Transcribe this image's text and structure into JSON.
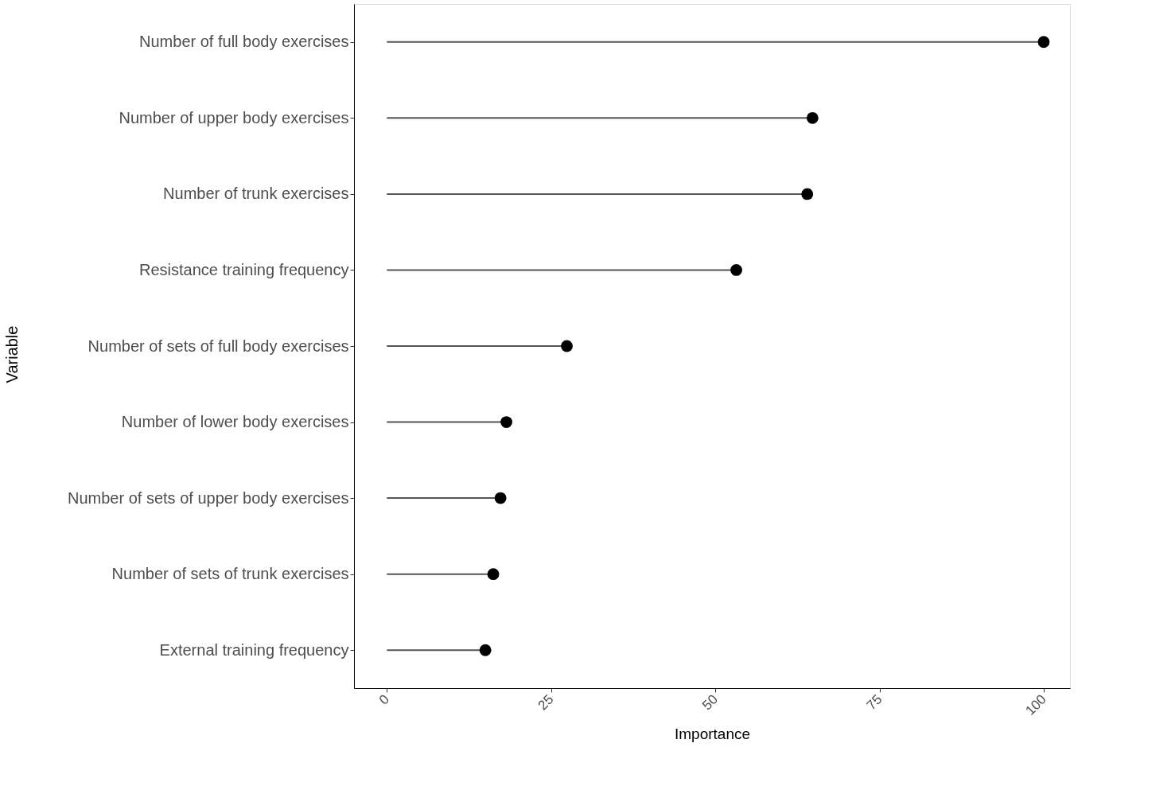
{
  "chart_data": {
    "type": "lollipop",
    "orientation": "horizontal",
    "xlabel": "Importance",
    "ylabel": "Variable",
    "categories": [
      "Number of full body exercises",
      "Number of upper body exercises",
      "Number of trunk exercises",
      "Resistance training frequency",
      "Number of sets of full body exercises",
      "Number of lower body exercises",
      "Number of sets of upper body exercises",
      "Number of sets of trunk exercises",
      "External training frequency"
    ],
    "series": [
      {
        "color": "#000000",
        "values": [
          100,
          64.8,
          64.0,
          53.2,
          27.4,
          18.2,
          17.3,
          16.2,
          15.0
        ]
      }
    ],
    "xlim": [
      -5,
      104
    ],
    "xticks": [
      0,
      25,
      50,
      75,
      100
    ],
    "grid": false,
    "marker": "circle"
  }
}
